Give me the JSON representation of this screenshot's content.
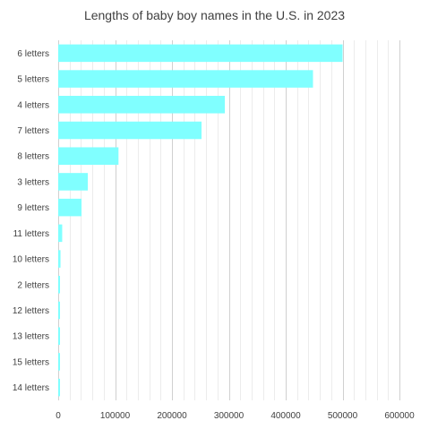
{
  "chart_data": {
    "type": "bar",
    "orientation": "horizontal",
    "title": "Lengths of baby boy names in the U.S. in 2023",
    "categories": [
      "6 letters",
      "5 letters",
      "4 letters",
      "7 letters",
      "8 letters",
      "3 letters",
      "9 letters",
      "11 letters",
      "10 letters",
      "2 letters",
      "12 letters",
      "13 letters",
      "15 letters",
      "14 letters"
    ],
    "values": [
      500000,
      448000,
      293000,
      252000,
      106000,
      52000,
      41000,
      7000,
      4000,
      2000,
      1500,
      1200,
      1000,
      800
    ],
    "xlim": [
      0,
      600000
    ],
    "xticks": [
      "0",
      "100000",
      "200000",
      "300000",
      "400000",
      "500000",
      "600000"
    ],
    "grid": true,
    "bar_color": "#80FFFF"
  }
}
